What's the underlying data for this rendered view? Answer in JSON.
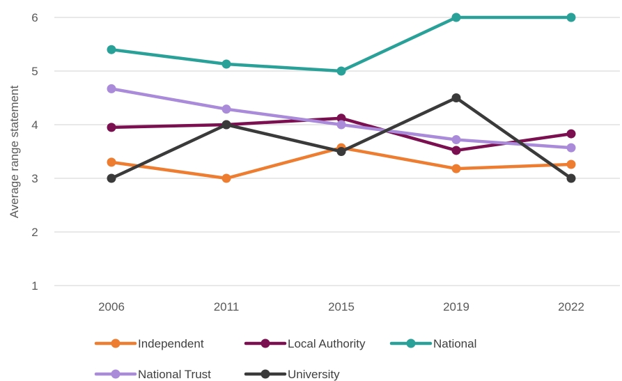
{
  "chart_data": {
    "type": "line",
    "title": "",
    "xlabel": "",
    "ylabel": "Average range statement",
    "categories": [
      "2006",
      "2011",
      "2015",
      "2019",
      "2022"
    ],
    "ylim": [
      1,
      6
    ],
    "yticks": [
      1,
      2,
      3,
      4,
      5,
      6
    ],
    "grid": "horizontal",
    "legend_position": "bottom",
    "series": [
      {
        "name": "Independent",
        "color": "#ED7D31",
        "values": [
          3.3,
          3.0,
          3.57,
          3.18,
          3.26
        ]
      },
      {
        "name": "Local Authority",
        "color": "#7B1050",
        "values": [
          3.95,
          4.0,
          4.12,
          3.52,
          3.83
        ]
      },
      {
        "name": "National",
        "color": "#2AA198",
        "values": [
          5.4,
          5.13,
          5.0,
          6.0,
          6.0
        ]
      },
      {
        "name": "National Trust",
        "color": "#A98BDA",
        "values": [
          4.67,
          4.29,
          4.0,
          3.72,
          3.57
        ]
      },
      {
        "name": "University",
        "color": "#3A3A3A",
        "values": [
          3.0,
          4.0,
          3.5,
          4.5,
          3.0
        ]
      }
    ]
  }
}
